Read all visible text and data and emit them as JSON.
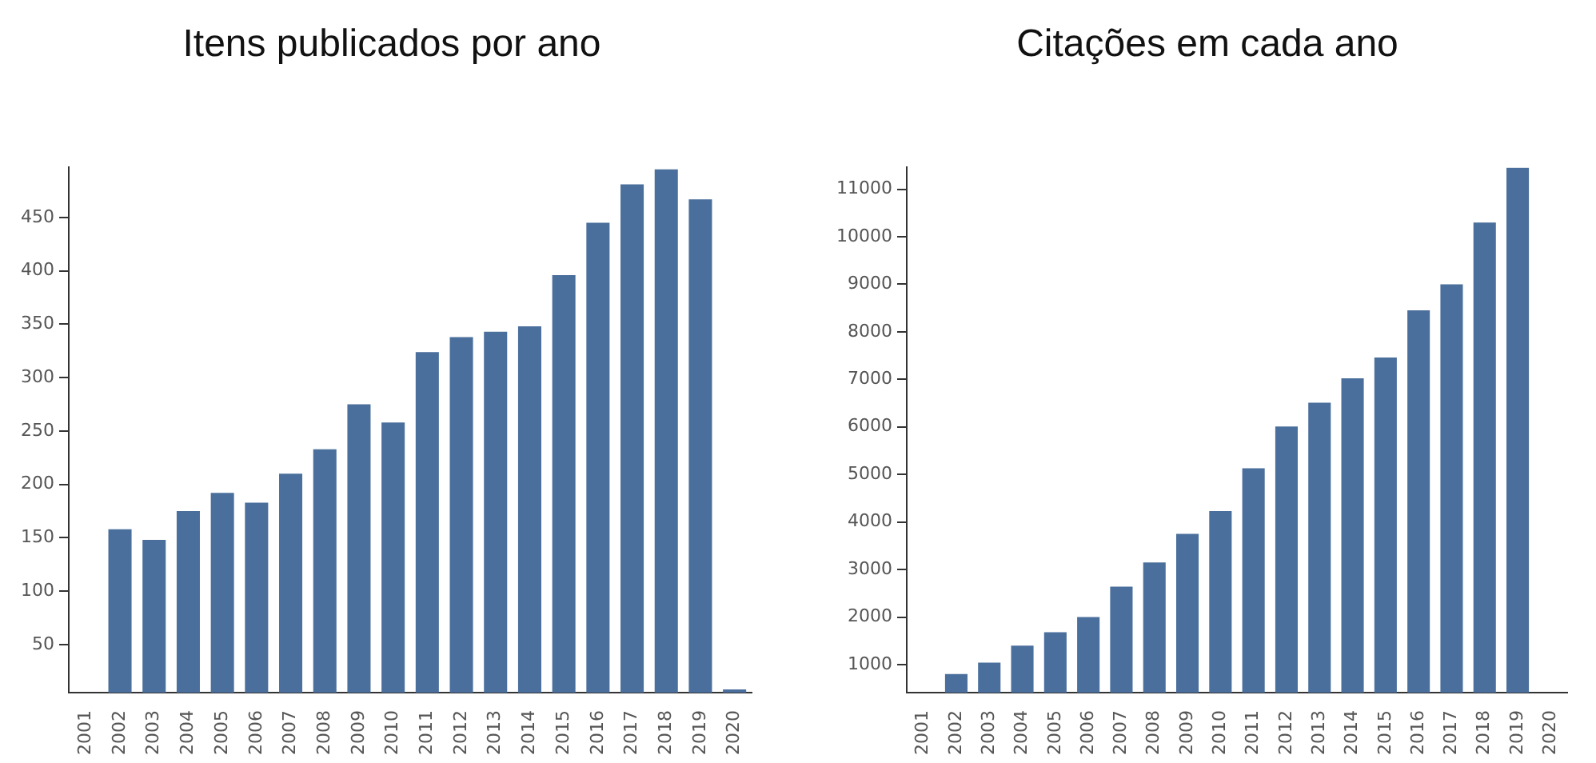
{
  "chart_data": [
    {
      "type": "bar",
      "title": "Itens publicados por ano",
      "categories": [
        "2001",
        "2002",
        "2003",
        "2004",
        "2005",
        "2006",
        "2007",
        "2008",
        "2009",
        "2010",
        "2011",
        "2012",
        "2013",
        "2014",
        "2015",
        "2016",
        "2017",
        "2018",
        "2019",
        "2020"
      ],
      "values": [
        null,
        158,
        148,
        175,
        192,
        183,
        210,
        233,
        275,
        258,
        324,
        338,
        343,
        348,
        396,
        445,
        481,
        495,
        467,
        8
      ],
      "color": "#4a6f9c",
      "ylim": [
        5,
        497
      ],
      "yticks": [
        50,
        100,
        150,
        200,
        250,
        300,
        350,
        400,
        450
      ],
      "grid": false,
      "legend": false
    },
    {
      "type": "bar",
      "title": "Citações em cada ano",
      "categories": [
        "2001",
        "2002",
        "2003",
        "2004",
        "2005",
        "2006",
        "2007",
        "2008",
        "2009",
        "2010",
        "2011",
        "2012",
        "2013",
        "2014",
        "2015",
        "2016",
        "2017",
        "2018",
        "2019",
        "2020"
      ],
      "values": [
        null,
        800,
        1040,
        1400,
        1680,
        2000,
        2640,
        3150,
        3750,
        4230,
        5130,
        6010,
        6510,
        7020,
        7460,
        8450,
        9000,
        10300,
        11450,
        null
      ],
      "color": "#4a6f9c",
      "ylim": [
        410,
        11460
      ],
      "yticks": [
        1000,
        2000,
        3000,
        4000,
        5000,
        6000,
        7000,
        8000,
        9000,
        10000,
        11000
      ],
      "grid": false,
      "legend": false
    }
  ]
}
